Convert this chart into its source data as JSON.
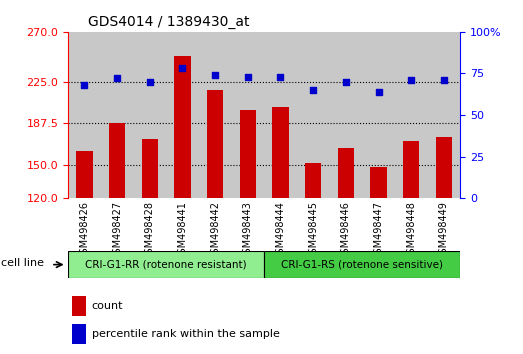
{
  "title": "GDS4014 / 1389430_at",
  "samples": [
    "GSM498426",
    "GSM498427",
    "GSM498428",
    "GSM498441",
    "GSM498442",
    "GSM498443",
    "GSM498444",
    "GSM498445",
    "GSM498446",
    "GSM498447",
    "GSM498448",
    "GSM498449"
  ],
  "counts": [
    163,
    188,
    173,
    248,
    218,
    200,
    202,
    152,
    165,
    148,
    172,
    175
  ],
  "percentile_ranks": [
    68,
    72,
    70,
    78,
    74,
    73,
    73,
    65,
    70,
    64,
    71,
    71
  ],
  "ylim_left": [
    120,
    270
  ],
  "ylim_right": [
    0,
    100
  ],
  "yticks_left": [
    120,
    150,
    187.5,
    225,
    270
  ],
  "yticks_right": [
    0,
    25,
    50,
    75,
    100
  ],
  "bar_color": "#cc0000",
  "dot_color": "#0000cc",
  "group1_label": "CRI-G1-RR (rotenone resistant)",
  "group2_label": "CRI-G1-RS (rotenone sensitive)",
  "group1_color": "#90ee90",
  "group2_color": "#44cc44",
  "group1_count": 6,
  "group2_count": 6,
  "cell_line_label": "cell line",
  "legend_count_label": "count",
  "legend_pct_label": "percentile rank within the sample",
  "bg_color": "#ffffff",
  "plot_bg_color": "#ffffff",
  "tick_area_color": "#c8c8c8",
  "grid_color": "#000000"
}
